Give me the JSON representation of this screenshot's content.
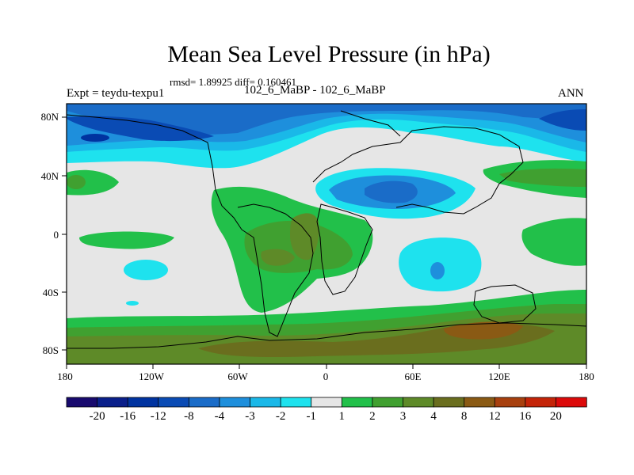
{
  "title": "Mean Sea Level Pressure (in hPa)",
  "stats": "rmsd= 1.89925 diff= 0.160461",
  "expt": "Expt = teydu-texpu1",
  "experiments": "102_6_MaBP - 102_6_MaBP",
  "season": "ANN",
  "lat_labels": [
    "80N",
    "40N",
    "0",
    "40S",
    "80S"
  ],
  "lon_labels": [
    "180",
    "120W",
    "60W",
    "0",
    "60E",
    "120E",
    "180"
  ],
  "colorbar": {
    "colors": [
      "#180a6e",
      "#0a1f8a",
      "#0033a0",
      "#0a4bb4",
      "#1a6cc8",
      "#1e8fdc",
      "#1ab8e8",
      "#1ee2ee",
      "#e6e6e6",
      "#22c04a",
      "#40a030",
      "#5e8a28",
      "#6a6e1e",
      "#8a5a14",
      "#a8400e",
      "#c42408",
      "#dc0a0a"
    ],
    "labels": [
      "-20",
      "-16",
      "-12",
      "-8",
      "-4",
      "-3",
      "-2",
      "-1",
      "1",
      "2",
      "3",
      "4",
      "8",
      "12",
      "16",
      "20"
    ]
  }
}
